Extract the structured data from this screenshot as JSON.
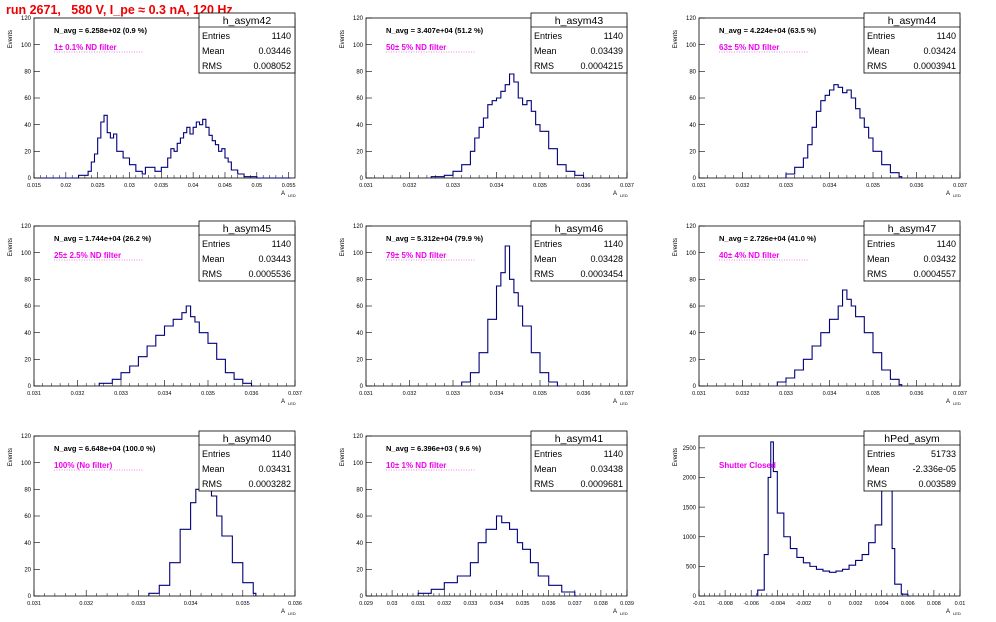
{
  "header": {
    "run_title": "run 2671,   580 V, I_pe ≈ 0.3 nA, 120 Hz"
  },
  "colors": {
    "title": "#ee0000",
    "annotation": "#ee00ee",
    "line": "#00007a",
    "frame": "#000000"
  },
  "common": {
    "ylabel": "Events",
    "stat_labels": {
      "entries": "Entries",
      "mean": "Mean",
      "rms": "RMS"
    }
  },
  "chart_data": [
    {
      "type": "histogram",
      "name": "h_asym42",
      "navg": "N_avg = 6.258e+02 (0.9 %)",
      "filter": "1± 0.1% ND filter",
      "entries": "1140",
      "mean": "0.03446",
      "rms": "0.008052",
      "xlim": [
        0.015,
        0.056
      ],
      "ylim": [
        0,
        120
      ],
      "xticks": [
        "0.015",
        "0.02",
        "0.025",
        "0.03",
        "0.035",
        "0.04",
        "0.045",
        "0.05",
        "0.055"
      ],
      "yticks": [
        "0",
        "20",
        "40",
        "60",
        "80",
        "100",
        "120"
      ],
      "xlabel": "A",
      "x": [
        0.016,
        0.02,
        0.022,
        0.0235,
        0.024,
        0.0245,
        0.025,
        0.0255,
        0.026,
        0.0265,
        0.027,
        0.0275,
        0.028,
        0.029,
        0.03,
        0.031,
        0.032,
        0.0325,
        0.034,
        0.035,
        0.036,
        0.0365,
        0.037,
        0.0375,
        0.038,
        0.0385,
        0.039,
        0.0395,
        0.04,
        0.0405,
        0.041,
        0.0415,
        0.042,
        0.0425,
        0.043,
        0.0435,
        0.044,
        0.0445,
        0.045,
        0.0455,
        0.046,
        0.047,
        0.048,
        0.05,
        0.055
      ],
      "y": [
        0,
        0,
        2,
        5,
        12,
        18,
        30,
        42,
        47,
        34,
        30,
        33,
        20,
        15,
        10,
        5,
        3,
        8,
        5,
        8,
        15,
        22,
        20,
        26,
        30,
        34,
        38,
        33,
        38,
        42,
        40,
        44,
        38,
        32,
        28,
        25,
        20,
        22,
        15,
        12,
        6,
        3,
        1,
        0,
        0
      ]
    },
    {
      "type": "histogram",
      "name": "h_asym43",
      "navg": "N_avg = 3.407e+04 (51.2 %)",
      "filter": "50± 5% ND filter",
      "entries": "1140",
      "mean": "0.03439",
      "rms": "0.0004215",
      "xlim": [
        0.031,
        0.037
      ],
      "ylim": [
        0,
        120
      ],
      "xticks": [
        "0.031",
        "0.032",
        "0.033",
        "0.034",
        "0.035",
        "0.036",
        "0.037"
      ],
      "yticks": [
        "0",
        "20",
        "40",
        "60",
        "80",
        "100",
        "120"
      ],
      "xlabel": "A",
      "x": [
        0.0325,
        0.0328,
        0.033,
        0.0332,
        0.0334,
        0.0335,
        0.0336,
        0.0337,
        0.0338,
        0.0339,
        0.034,
        0.0341,
        0.0342,
        0.0343,
        0.0344,
        0.0345,
        0.0346,
        0.0347,
        0.0348,
        0.0349,
        0.035,
        0.0352,
        0.0354,
        0.0356,
        0.0358,
        0.036
      ],
      "y": [
        1,
        2,
        5,
        10,
        20,
        30,
        38,
        45,
        55,
        58,
        60,
        65,
        70,
        78,
        72,
        60,
        55,
        58,
        50,
        40,
        35,
        22,
        10,
        5,
        2,
        0
      ]
    },
    {
      "type": "histogram",
      "name": "h_asym44",
      "navg": "N_avg = 4.224e+04 (63.5 %)",
      "filter": "63± 5% ND filter",
      "entries": "1140",
      "mean": "0.03424",
      "rms": "0.0003941",
      "xlim": [
        0.031,
        0.037
      ],
      "ylim": [
        0,
        120
      ],
      "xticks": [
        "0.031",
        "0.032",
        "0.033",
        "0.034",
        "0.035",
        "0.036",
        "0.037"
      ],
      "yticks": [
        "0",
        "20",
        "40",
        "60",
        "80",
        "100",
        "120"
      ],
      "xlabel": "A",
      "x": [
        0.033,
        0.0332,
        0.0334,
        0.0335,
        0.0336,
        0.0337,
        0.0338,
        0.0339,
        0.034,
        0.0341,
        0.0342,
        0.0343,
        0.0344,
        0.0345,
        0.0346,
        0.0347,
        0.0348,
        0.0349,
        0.035,
        0.0352,
        0.0354,
        0.0356
      ],
      "y": [
        3,
        8,
        15,
        25,
        38,
        50,
        58,
        62,
        66,
        70,
        68,
        64,
        66,
        60,
        52,
        45,
        38,
        30,
        20,
        10,
        4,
        1
      ]
    },
    {
      "type": "histogram",
      "name": "h_asym45",
      "navg": "N_avg = 1.744e+04 (26.2 %)",
      "filter": "25± 2.5% ND filter",
      "entries": "1140",
      "mean": "0.03443",
      "rms": "0.0005536",
      "xlim": [
        0.031,
        0.037
      ],
      "ylim": [
        0,
        120
      ],
      "xticks": [
        "0.031",
        "0.032",
        "0.033",
        "0.034",
        "0.035",
        "0.036",
        "0.037"
      ],
      "yticks": [
        "0",
        "20",
        "40",
        "60",
        "80",
        "100",
        "120"
      ],
      "xlabel": "A",
      "x": [
        0.0325,
        0.0328,
        0.033,
        0.0332,
        0.0334,
        0.0336,
        0.0338,
        0.034,
        0.0342,
        0.0344,
        0.0345,
        0.0346,
        0.0347,
        0.0348,
        0.035,
        0.0352,
        0.0354,
        0.0356,
        0.0358,
        0.036
      ],
      "y": [
        2,
        5,
        10,
        15,
        22,
        30,
        38,
        45,
        50,
        55,
        60,
        52,
        48,
        40,
        32,
        20,
        10,
        5,
        2,
        0
      ]
    },
    {
      "type": "histogram",
      "name": "h_asym46",
      "navg": "N_avg = 5.312e+04 (79.9 %)",
      "filter": "79± 5% ND filter",
      "entries": "1140",
      "mean": "0.03428",
      "rms": "0.0003454",
      "xlim": [
        0.031,
        0.037
      ],
      "ylim": [
        0,
        120
      ],
      "xticks": [
        "0.031",
        "0.032",
        "0.033",
        "0.034",
        "0.035",
        "0.036",
        "0.037"
      ],
      "yticks": [
        "0",
        "20",
        "40",
        "60",
        "80",
        "100",
        "120"
      ],
      "xlabel": "A",
      "x": [
        0.0332,
        0.0334,
        0.0336,
        0.0338,
        0.034,
        0.0341,
        0.0342,
        0.0343,
        0.0344,
        0.0345,
        0.0346,
        0.0348,
        0.035,
        0.0352,
        0.0354
      ],
      "y": [
        3,
        10,
        25,
        50,
        75,
        85,
        105,
        80,
        70,
        60,
        45,
        25,
        10,
        3,
        0
      ]
    },
    {
      "type": "histogram",
      "name": "h_asym47",
      "navg": "N_avg = 2.726e+04 (41.0 %)",
      "filter": "40± 4% ND filter",
      "entries": "1140",
      "mean": "0.03432",
      "rms": "0.0004557",
      "xlim": [
        0.031,
        0.037
      ],
      "ylim": [
        0,
        120
      ],
      "xticks": [
        "0.031",
        "0.032",
        "0.033",
        "0.034",
        "0.035",
        "0.036",
        "0.037"
      ],
      "yticks": [
        "0",
        "20",
        "40",
        "60",
        "80",
        "100",
        "120"
      ],
      "xlabel": "A",
      "x": [
        0.0328,
        0.033,
        0.0332,
        0.0334,
        0.0336,
        0.0338,
        0.034,
        0.0342,
        0.0343,
        0.0344,
        0.0345,
        0.0346,
        0.0348,
        0.035,
        0.0352,
        0.0354,
        0.0356
      ],
      "y": [
        3,
        6,
        12,
        20,
        30,
        40,
        50,
        60,
        72,
        65,
        60,
        52,
        40,
        25,
        12,
        5,
        1
      ]
    },
    {
      "type": "histogram",
      "name": "h_asym40",
      "navg": "N_avg = 6.648e+04 (100.0 %)",
      "filter": "100% (No filter)",
      "entries": "1140",
      "mean": "0.03431",
      "rms": "0.0003282",
      "xlim": [
        0.031,
        0.036
      ],
      "ylim": [
        0,
        120
      ],
      "xticks": [
        "0.031",
        "0.032",
        "0.033",
        "0.034",
        "0.035",
        "0.036"
      ],
      "yticks": [
        "0",
        "20",
        "40",
        "60",
        "80",
        "100",
        "120"
      ],
      "xlabel": "A",
      "x": [
        0.0332,
        0.0334,
        0.0336,
        0.0338,
        0.034,
        0.0341,
        0.0342,
        0.0343,
        0.0344,
        0.0345,
        0.0346,
        0.0348,
        0.035,
        0.0352
      ],
      "y": [
        2,
        8,
        25,
        50,
        70,
        80,
        85,
        82,
        75,
        60,
        45,
        25,
        10,
        2
      ]
    },
    {
      "type": "histogram",
      "name": "h_asym41",
      "navg": "N_avg = 6.396e+03 ( 9.6 %)",
      "filter": "10± 1% ND filter",
      "entries": "1140",
      "mean": "0.03438",
      "rms": "0.0009681",
      "xlim": [
        0.029,
        0.039
      ],
      "ylim": [
        0,
        120
      ],
      "xticks": [
        "0.029",
        "0.03",
        "0.031",
        "0.032",
        "0.033",
        "0.034",
        "0.035",
        "0.036",
        "0.037",
        "0.038",
        "0.039"
      ],
      "yticks": [
        "0",
        "20",
        "40",
        "60",
        "80",
        "100",
        "120"
      ],
      "xlabel": "A",
      "x": [
        0.031,
        0.0315,
        0.032,
        0.0325,
        0.033,
        0.0333,
        0.0336,
        0.034,
        0.0342,
        0.0345,
        0.0348,
        0.035,
        0.0353,
        0.0356,
        0.036,
        0.0365,
        0.037
      ],
      "y": [
        2,
        5,
        10,
        15,
        25,
        40,
        50,
        60,
        55,
        50,
        40,
        35,
        25,
        15,
        8,
        3,
        0
      ]
    },
    {
      "type": "histogram",
      "name": "hPed_asym",
      "navg": "",
      "filter": "Shutter Closed",
      "entries": "51733",
      "mean": "-2.336e-05",
      "rms": "0.003589",
      "xlim": [
        -0.01,
        0.01
      ],
      "ylim": [
        0,
        2700
      ],
      "xticks": [
        "-0.01",
        "-0.008",
        "-0.006",
        "-0.004",
        "-0.002",
        "0",
        "0.002",
        "0.004",
        "0.006",
        "0.008",
        "0.01"
      ],
      "yticks": [
        "0",
        "500",
        "1000",
        "1500",
        "2000",
        "2500"
      ],
      "xlabel": "A",
      "x": [
        -0.006,
        -0.0055,
        -0.005,
        -0.0047,
        -0.0045,
        -0.0043,
        -0.004,
        -0.0035,
        -0.003,
        -0.0025,
        -0.002,
        -0.0015,
        -0.001,
        -0.0005,
        0,
        0.0005,
        0.001,
        0.0015,
        0.002,
        0.0025,
        0.003,
        0.0035,
        0.004,
        0.0042,
        0.0044,
        0.0046,
        0.0048,
        0.005,
        0.0055,
        0.006
      ],
      "y": [
        0,
        100,
        700,
        2000,
        2600,
        2100,
        1400,
        1000,
        800,
        650,
        560,
        500,
        450,
        420,
        400,
        420,
        450,
        520,
        600,
        700,
        900,
        1200,
        1800,
        2300,
        2650,
        2100,
        800,
        200,
        30,
        0
      ]
    }
  ]
}
